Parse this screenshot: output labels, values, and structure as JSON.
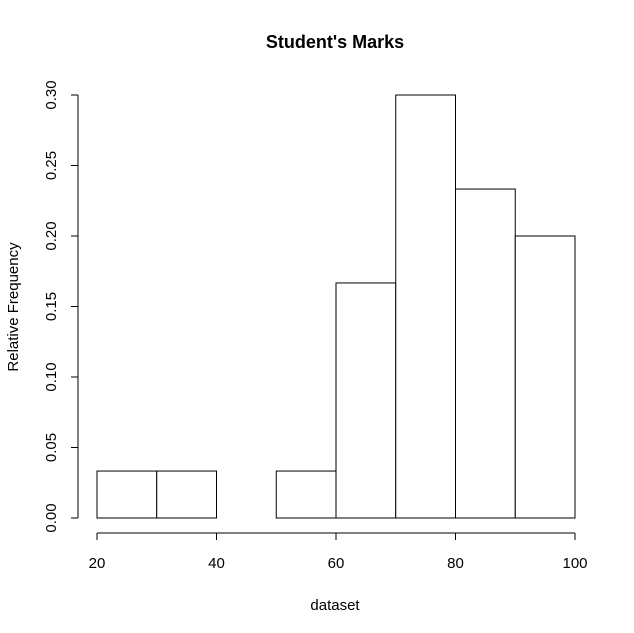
{
  "chart_data": {
    "type": "bar",
    "title": "Student's Marks",
    "xlabel": "dataset",
    "ylabel": "Relative Frequency",
    "bins": [
      {
        "from": 20,
        "to": 30,
        "value": 0.0333
      },
      {
        "from": 30,
        "to": 40,
        "value": 0.0333
      },
      {
        "from": 40,
        "to": 50,
        "value": 0.0
      },
      {
        "from": 50,
        "to": 60,
        "value": 0.0333
      },
      {
        "from": 60,
        "to": 70,
        "value": 0.1667
      },
      {
        "from": 70,
        "to": 80,
        "value": 0.3
      },
      {
        "from": 80,
        "to": 90,
        "value": 0.2333
      },
      {
        "from": 90,
        "to": 100,
        "value": 0.2
      }
    ],
    "xlim": [
      20,
      100
    ],
    "ylim": [
      0,
      0.3
    ],
    "xticks": [
      20,
      40,
      60,
      80,
      100
    ],
    "yticks": [
      "0.00",
      "0.05",
      "0.10",
      "0.15",
      "0.20",
      "0.25",
      "0.30"
    ],
    "grid": false,
    "colors": {
      "bar_fill": "#ffffff",
      "bar_stroke": "#000000",
      "background": "#ffffff"
    }
  }
}
